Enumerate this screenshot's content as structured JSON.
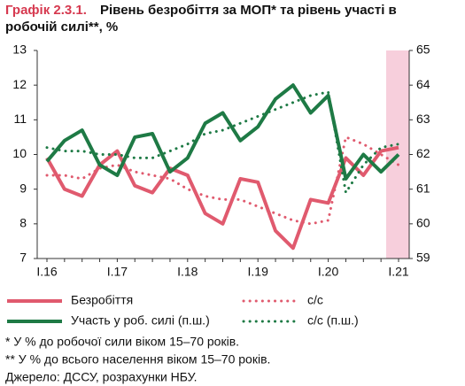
{
  "chart_data": {
    "type": "line",
    "title_number": "Графік 2.3.1.",
    "title_lines": [
      "Рівень безробіття за МОП* та рівень участі в",
      "робочій силі**, %"
    ],
    "categories": [
      "I.16",
      null,
      null,
      null,
      "I.17",
      null,
      null,
      null,
      "I.18",
      null,
      null,
      null,
      "I.19",
      null,
      null,
      null,
      "I.20",
      null,
      null,
      null,
      "I.21"
    ],
    "ylim": [
      7,
      13
    ],
    "yticks": [
      7,
      8,
      9,
      10,
      11,
      12,
      13
    ],
    "y2lim": [
      59,
      65
    ],
    "y2ticks": [
      59,
      60,
      61,
      62,
      63,
      64,
      65
    ],
    "series": [
      {
        "name": "Безробіття",
        "color": "#e05a6e",
        "style": "solid",
        "values": [
          9.9,
          9.0,
          8.8,
          9.7,
          10.1,
          9.1,
          8.9,
          9.6,
          9.4,
          8.3,
          8.0,
          9.3,
          9.2,
          7.8,
          7.3,
          8.7,
          8.6,
          9.9,
          9.4,
          10.1,
          10.2
        ]
      },
      {
        "name": "с/с",
        "color": "#e05a6e",
        "style": "dotted",
        "values": [
          9.4,
          9.4,
          9.3,
          9.6,
          9.7,
          9.5,
          9.4,
          9.3,
          9.0,
          8.8,
          8.7,
          8.7,
          8.5,
          8.3,
          8.1,
          8.0,
          8.1,
          10.5,
          10.3,
          10.0,
          9.7
        ]
      },
      {
        "name": "Участь у роб. силі (п.ш.)",
        "color": "#1e7a45",
        "style": "solid",
        "axis": "y2",
        "values": [
          61.8,
          62.4,
          62.7,
          61.7,
          61.4,
          62.5,
          62.6,
          61.5,
          61.9,
          62.9,
          63.2,
          62.4,
          62.8,
          63.6,
          64.0,
          63.2,
          63.7,
          61.3,
          62.0,
          61.5,
          62.0
        ]
      },
      {
        "name": "с/с (п.ш.)",
        "color": "#1e7a45",
        "style": "dotted",
        "axis": "y2",
        "values": [
          62.2,
          62.1,
          62.1,
          62.0,
          62.0,
          61.9,
          61.9,
          62.1,
          62.3,
          62.6,
          62.7,
          62.9,
          63.1,
          63.3,
          63.5,
          63.7,
          63.8,
          60.9,
          61.7,
          62.2,
          62.3
        ]
      }
    ],
    "footnotes": [
      "* У % до робочої сили віком 15–70 років.",
      "** У % до всього населення віком 15–70 років.",
      "Джерело: ДССУ, розрахунки НБУ."
    ]
  }
}
